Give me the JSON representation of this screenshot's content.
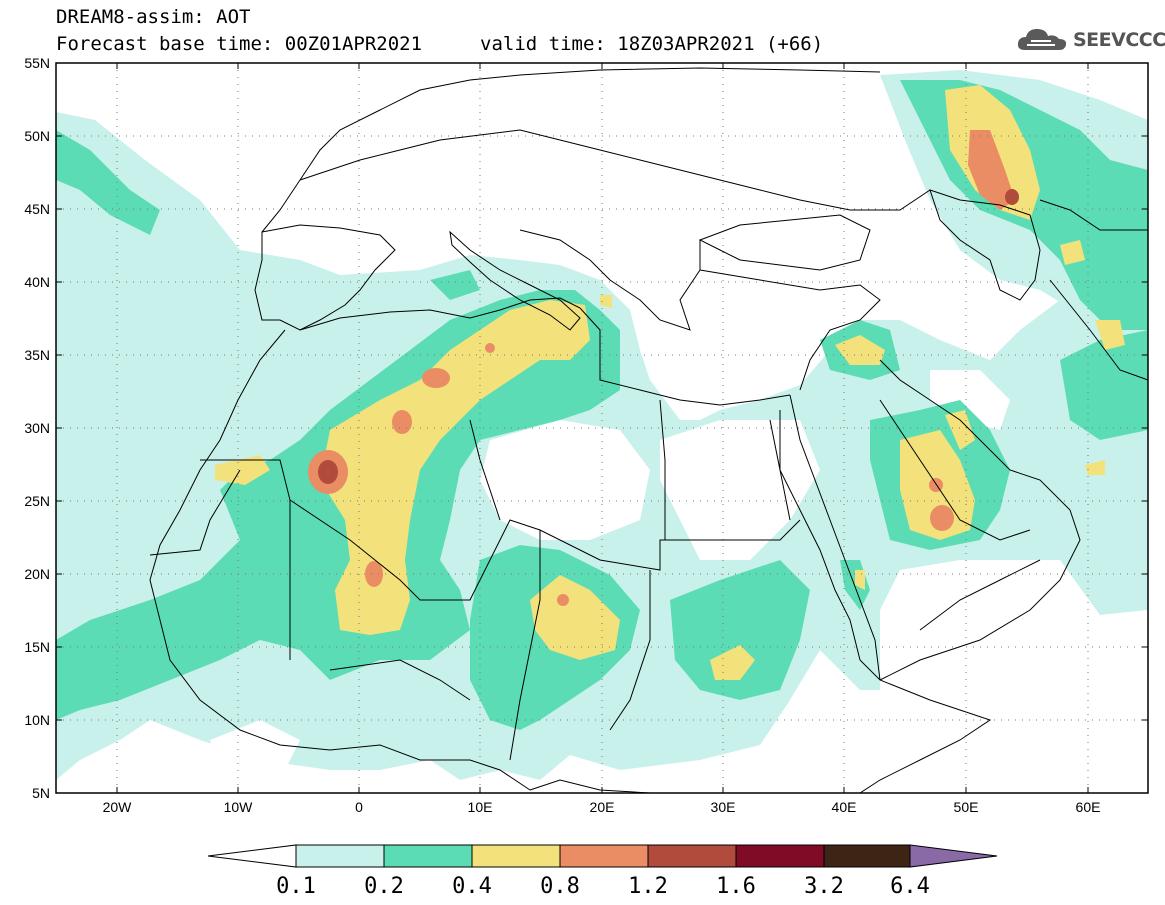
{
  "header": {
    "line1": "DREAM8-assim: AOT",
    "line2": "Forecast base time: 00Z01APR2021",
    "valid": "valid time: 18Z03APR2021 (+66)"
  },
  "logo": {
    "text": "SEEVCCC",
    "icon": "cloud-icon"
  },
  "axes": {
    "lat_labels": [
      "55N",
      "50N",
      "45N",
      "40N",
      "35N",
      "30N",
      "25N",
      "20N",
      "15N",
      "10N",
      "5N"
    ],
    "lon_labels": [
      "20W",
      "10W",
      "0",
      "10E",
      "20E",
      "30E",
      "40E",
      "50E",
      "60E"
    ]
  },
  "legend": {
    "levels": [
      "0.1",
      "0.2",
      "0.4",
      "0.8",
      "1.2",
      "1.6",
      "3.2",
      "6.4"
    ],
    "colors": [
      "#ffffff",
      "#c8f1ec",
      "#5cdcb4",
      "#f3e27c",
      "#ea8c64",
      "#b14b3c",
      "#7f0b26",
      "#3e2415",
      "#8a6aa6"
    ]
  },
  "map_extent": {
    "lon": [
      -25,
      65
    ],
    "lat": [
      5,
      55
    ]
  }
}
